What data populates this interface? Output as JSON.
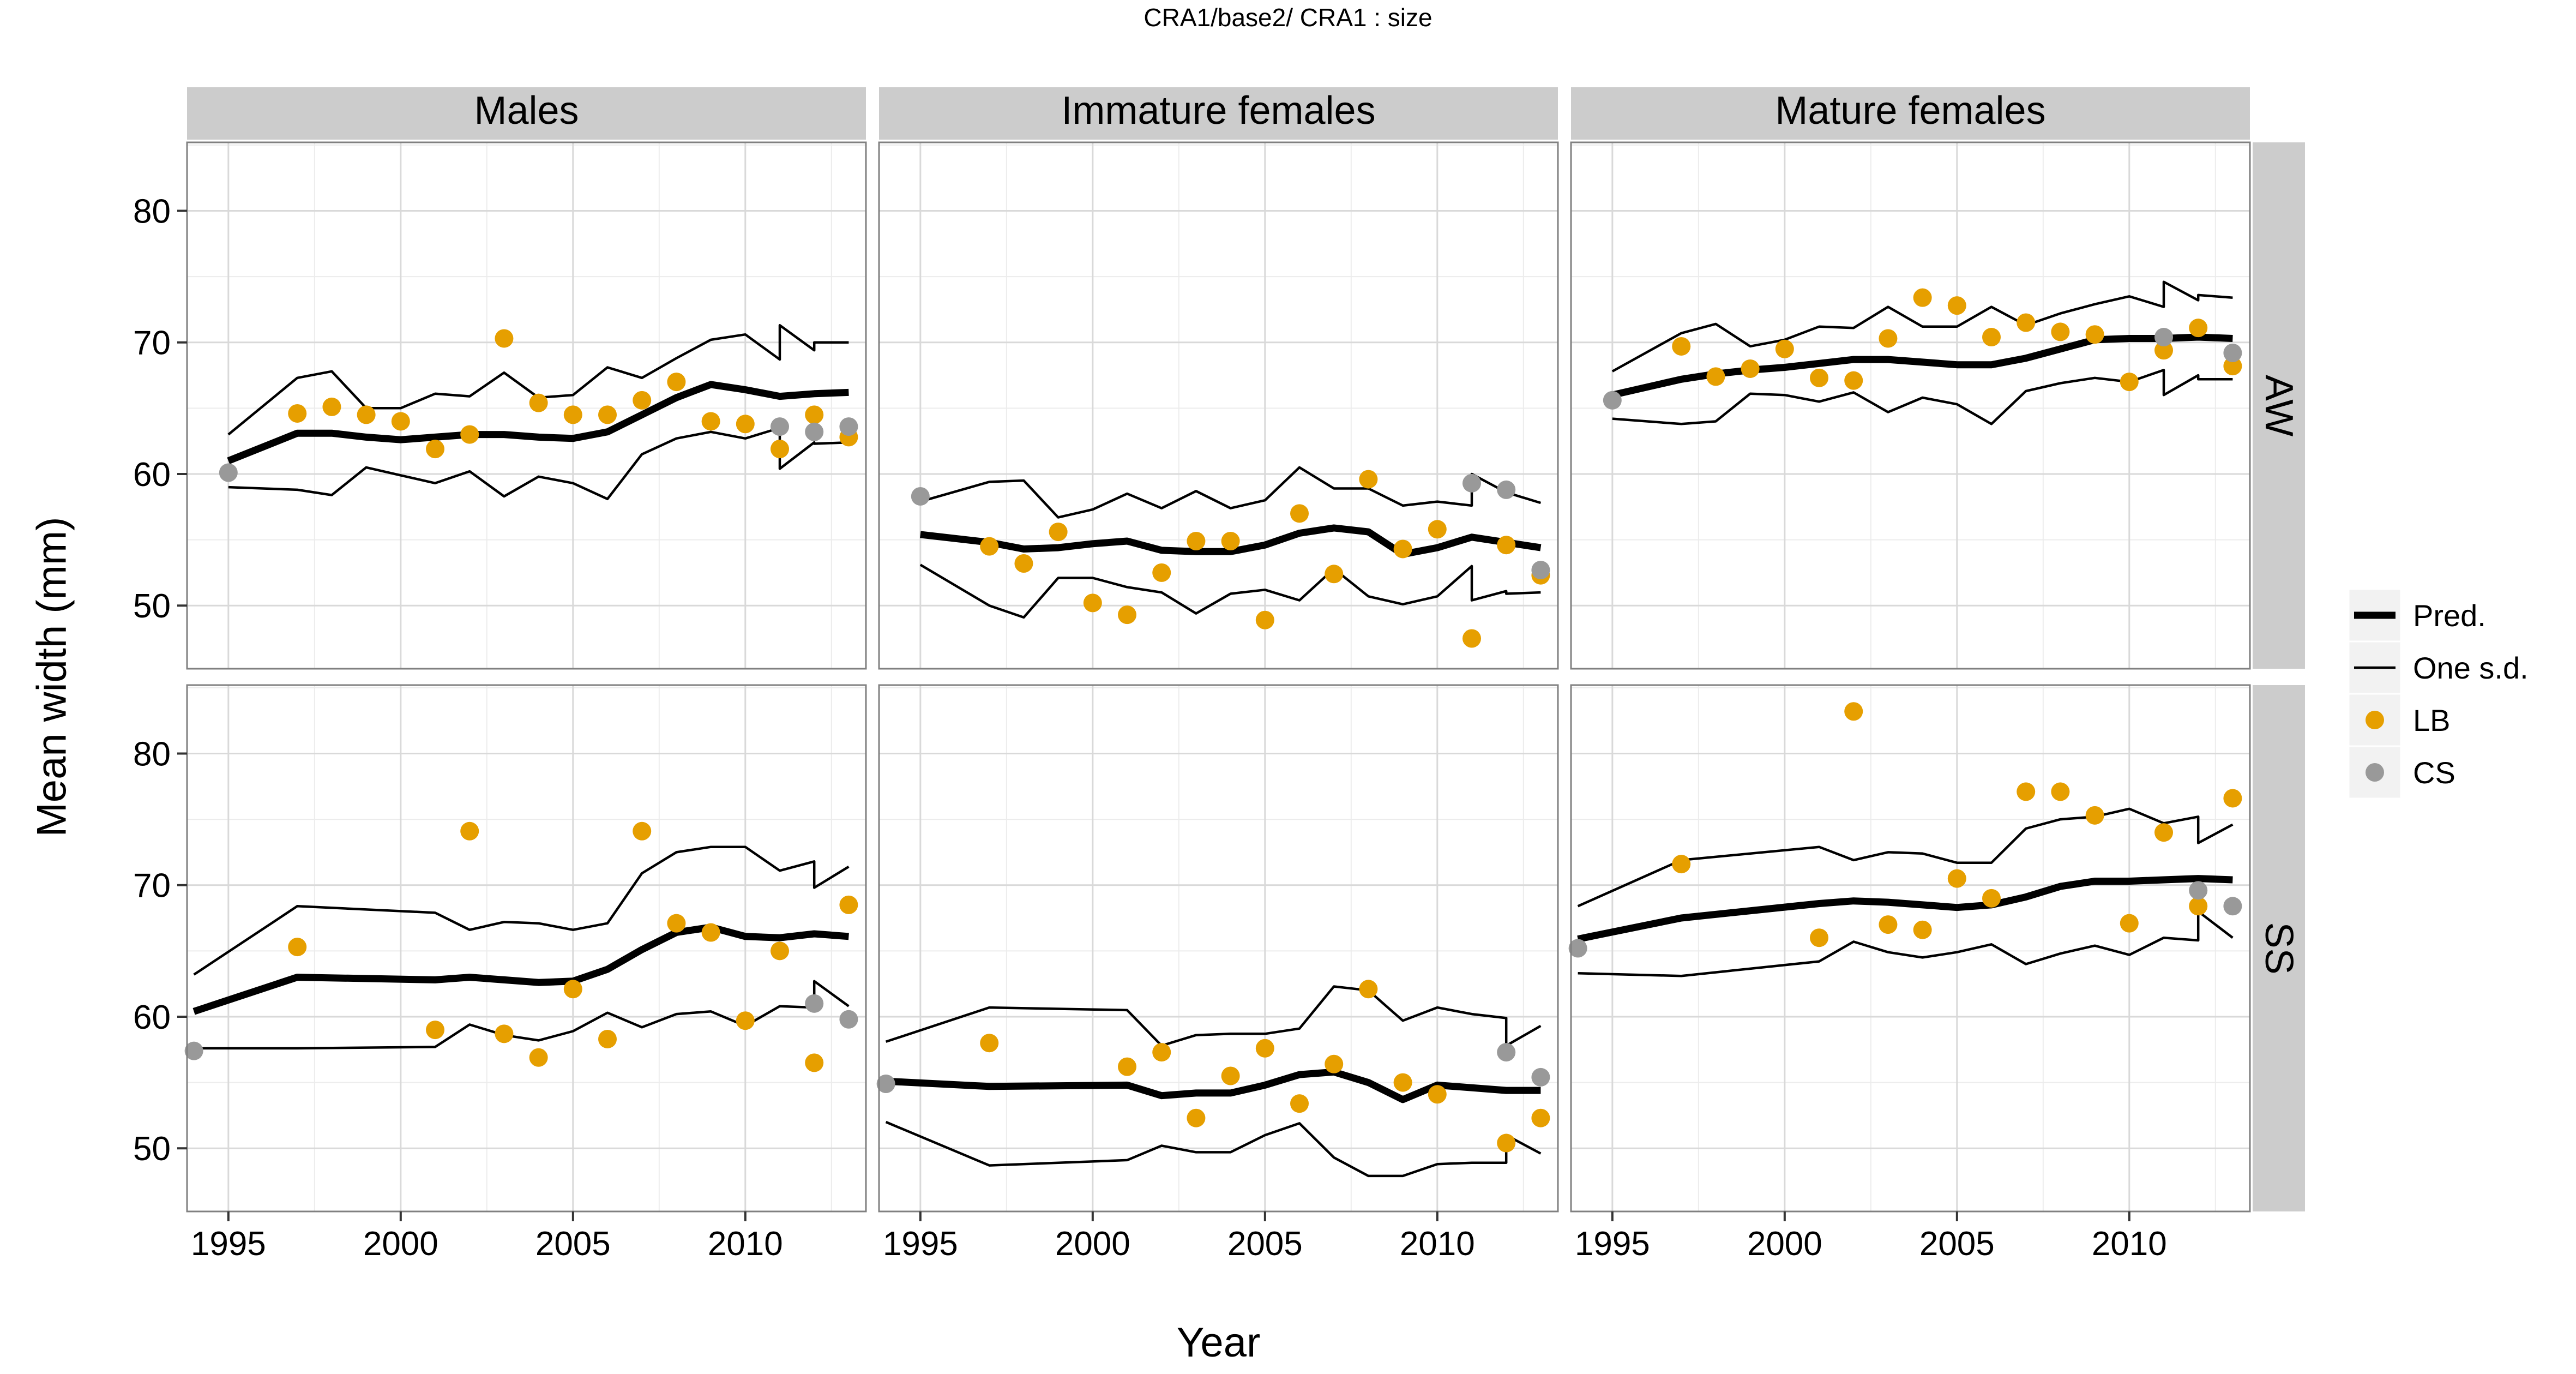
{
  "figure": {
    "title": "CRA1/base2/   CRA1 : size"
  },
  "chart_data": {
    "type": "scatter",
    "title": "CRA1/base2/   CRA1 : size",
    "xlabel": "Year",
    "ylabel": "Mean width (mm)",
    "xlim": [
      1993.8,
      2013.5
    ],
    "ylim": [
      45.2,
      85.2
    ],
    "x_ticks": [
      1995,
      2000,
      2005,
      2010
    ],
    "y_ticks": [
      50,
      60,
      70,
      80
    ],
    "x_tick_labels": [
      "1995",
      "2000",
      "2005",
      "2010"
    ],
    "y_tick_labels": [
      "50",
      "60",
      "70",
      "80"
    ],
    "grid": true,
    "legend_position": "right",
    "facet_columns": [
      "Males",
      "Immature females",
      "Mature females"
    ],
    "facet_rows": [
      "AW",
      "SS"
    ],
    "legend": [
      {
        "label": "Pred.",
        "kind": "thick-line",
        "color": "#000000"
      },
      {
        "label": "One s.d.",
        "kind": "thin-line",
        "color": "#000000"
      },
      {
        "label": "LB",
        "kind": "point",
        "color": "#E69F00"
      },
      {
        "label": "CS",
        "kind": "point",
        "color": "#999999"
      }
    ],
    "colors": {
      "LB": "#E69F00",
      "CS": "#999999",
      "lines": "#000000",
      "strip": "#cccccc",
      "grid": "#d9d9d9"
    },
    "panels": [
      {
        "row": "AW",
        "col": "Males",
        "pred": {
          "x": [
            1995,
            1997,
            1998,
            1999,
            2000,
            2001,
            2002,
            2003,
            2004,
            2005,
            2006,
            2007,
            2008,
            2009,
            2010,
            2011,
            2011,
            2012,
            2013
          ],
          "y": [
            61.0,
            63.1,
            63.1,
            62.8,
            62.6,
            62.8,
            63.0,
            63.0,
            62.8,
            62.7,
            63.2,
            64.5,
            65.8,
            66.8,
            66.4,
            65.9,
            65.9,
            66.1,
            66.2
          ]
        },
        "upper": {
          "x": [
            1995,
            1997,
            1998,
            1999,
            2000,
            2001,
            2002,
            2003,
            2004,
            2005,
            2006,
            2007,
            2008,
            2009,
            2010,
            2011,
            2011,
            2012,
            2012,
            2013
          ],
          "y": [
            63.0,
            67.3,
            67.8,
            65.0,
            65.0,
            66.1,
            65.9,
            67.7,
            65.8,
            66.0,
            68.1,
            67.3,
            68.8,
            70.2,
            70.6,
            68.7,
            71.3,
            69.4,
            70.0,
            70.0
          ]
        },
        "lower": {
          "x": [
            1995,
            1997,
            1998,
            1999,
            2000,
            2001,
            2002,
            2003,
            2004,
            2005,
            2006,
            2007,
            2008,
            2009,
            2010,
            2011,
            2011,
            2012,
            2012,
            2013
          ],
          "y": [
            59.0,
            58.8,
            58.4,
            60.5,
            59.9,
            59.3,
            60.2,
            58.3,
            59.8,
            59.3,
            58.1,
            61.5,
            62.7,
            63.2,
            62.7,
            63.5,
            60.4,
            62.4,
            62.3,
            62.4
          ]
        },
        "LB": {
          "x": [
            1997,
            1998,
            1999,
            2000,
            2001,
            2002,
            2003,
            2004,
            2005,
            2006,
            2007,
            2008,
            2009,
            2010,
            2011,
            2012,
            2013
          ],
          "y": [
            64.6,
            65.1,
            64.5,
            64.0,
            61.9,
            63.0,
            70.3,
            65.4,
            64.5,
            64.5,
            65.6,
            67.0,
            64.0,
            63.8,
            61.9,
            64.5,
            62.8
          ]
        },
        "CS": {
          "x": [
            1995,
            2011,
            2012,
            2013
          ],
          "y": [
            60.1,
            63.6,
            63.2,
            63.6
          ]
        }
      },
      {
        "row": "AW",
        "col": "Immature females",
        "pred": {
          "x": [
            1995,
            1997,
            1998,
            1999,
            2000,
            2001,
            2002,
            2003,
            2004,
            2005,
            2006,
            2007,
            2008,
            2009,
            2010,
            2011,
            2012,
            2013
          ],
          "y": [
            55.4,
            54.8,
            54.3,
            54.4,
            54.7,
            54.9,
            54.2,
            54.1,
            54.1,
            54.6,
            55.5,
            55.9,
            55.6,
            53.9,
            54.4,
            55.2,
            54.8,
            54.4
          ]
        },
        "upper": {
          "x": [
            1995,
            1997,
            1998,
            1999,
            2000,
            2001,
            2002,
            2003,
            2004,
            2005,
            2006,
            2007,
            2008,
            2009,
            2010,
            2011,
            2011,
            2012,
            2013
          ],
          "y": [
            57.9,
            59.4,
            59.5,
            56.7,
            57.3,
            58.5,
            57.4,
            58.7,
            57.4,
            58.0,
            60.5,
            58.9,
            58.9,
            57.6,
            57.9,
            57.6,
            60.0,
            58.6,
            57.8
          ]
        },
        "lower": {
          "x": [
            1995,
            1997,
            1998,
            1999,
            2000,
            2001,
            2002,
            2003,
            2004,
            2005,
            2006,
            2007,
            2008,
            2009,
            2010,
            2011,
            2011,
            2012,
            2012,
            2013
          ],
          "y": [
            53.1,
            50.0,
            49.1,
            52.1,
            52.1,
            51.4,
            51.0,
            49.4,
            50.9,
            51.2,
            50.4,
            52.8,
            50.7,
            50.1,
            50.7,
            53.0,
            50.4,
            51.1,
            50.9,
            51.0
          ]
        },
        "LB": {
          "x": [
            1997,
            1998,
            1999,
            2000,
            2001,
            2002,
            2003,
            2004,
            2005,
            2006,
            2007,
            2008,
            2009,
            2010,
            2011,
            2012,
            2013
          ],
          "y": [
            54.5,
            53.2,
            55.6,
            50.2,
            49.3,
            52.5,
            54.9,
            54.9,
            48.9,
            57.0,
            52.4,
            59.6,
            54.3,
            55.8,
            47.5,
            54.6,
            52.3
          ]
        },
        "CS": {
          "x": [
            1995,
            2011,
            2012,
            2013
          ],
          "y": [
            58.3,
            59.3,
            58.8,
            52.7
          ]
        }
      },
      {
        "row": "AW",
        "col": "Mature females",
        "pred": {
          "x": [
            1995,
            1997,
            1998,
            1999,
            2000,
            2001,
            2002,
            2003,
            2004,
            2005,
            2006,
            2007,
            2008,
            2009,
            2010,
            2011,
            2012,
            2013
          ],
          "y": [
            66.0,
            67.2,
            67.6,
            67.9,
            68.1,
            68.4,
            68.7,
            68.7,
            68.5,
            68.3,
            68.3,
            68.8,
            69.5,
            70.2,
            70.3,
            70.3,
            70.4,
            70.3
          ]
        },
        "upper": {
          "x": [
            1995,
            1997,
            1998,
            1999,
            2000,
            2001,
            2002,
            2003,
            2004,
            2005,
            2006,
            2007,
            2008,
            2009,
            2010,
            2011,
            2011,
            2012,
            2012,
            2013
          ],
          "y": [
            67.8,
            70.7,
            71.4,
            69.7,
            70.2,
            71.2,
            71.1,
            72.7,
            71.2,
            71.2,
            72.7,
            71.3,
            72.2,
            72.9,
            73.5,
            72.7,
            74.6,
            73.2,
            73.6,
            73.4
          ]
        },
        "lower": {
          "x": [
            1995,
            1997,
            1998,
            1999,
            2000,
            2001,
            2002,
            2003,
            2004,
            2005,
            2006,
            2007,
            2008,
            2009,
            2010,
            2011,
            2011,
            2012,
            2012,
            2013
          ],
          "y": [
            64.2,
            63.8,
            64.0,
            66.1,
            66.0,
            65.5,
            66.2,
            64.7,
            65.8,
            65.3,
            63.8,
            66.3,
            66.9,
            67.3,
            67.0,
            67.9,
            66.0,
            67.5,
            67.2,
            67.2
          ]
        },
        "LB": {
          "x": [
            1997,
            1998,
            1999,
            2000,
            2001,
            2002,
            2003,
            2004,
            2005,
            2006,
            2007,
            2008,
            2009,
            2010,
            2011,
            2012,
            2013
          ],
          "y": [
            69.7,
            67.4,
            68.0,
            69.5,
            67.3,
            67.1,
            70.3,
            73.4,
            72.8,
            70.4,
            71.5,
            70.8,
            70.6,
            67.0,
            69.4,
            71.1,
            68.2
          ]
        },
        "CS": {
          "x": [
            1995,
            2011,
            2013
          ],
          "y": [
            65.6,
            70.4,
            69.2
          ]
        }
      },
      {
        "row": "SS",
        "col": "Males",
        "pred": {
          "x": [
            1994,
            1997,
            2001,
            2002,
            2003,
            2004,
            2005,
            2006,
            2007,
            2008,
            2009,
            2010,
            2011,
            2012,
            2013
          ],
          "y": [
            60.4,
            63.0,
            62.8,
            63.0,
            62.8,
            62.6,
            62.7,
            63.6,
            65.1,
            66.4,
            66.8,
            66.1,
            66.0,
            66.3,
            66.1
          ]
        },
        "upper": {
          "x": [
            1994,
            1997,
            2001,
            2002,
            2003,
            2004,
            2005,
            2006,
            2007,
            2008,
            2009,
            2010,
            2011,
            2012,
            2012,
            2013
          ],
          "y": [
            63.2,
            68.4,
            67.9,
            66.6,
            67.2,
            67.1,
            66.6,
            67.1,
            70.9,
            72.5,
            72.9,
            72.9,
            71.1,
            71.8,
            69.8,
            71.4
          ]
        },
        "lower": {
          "x": [
            1994,
            1997,
            2001,
            2002,
            2003,
            2004,
            2005,
            2006,
            2007,
            2008,
            2009,
            2010,
            2011,
            2012,
            2012,
            2013
          ],
          "y": [
            57.6,
            57.6,
            57.7,
            59.4,
            58.6,
            58.2,
            58.9,
            60.3,
            59.2,
            60.2,
            60.4,
            59.3,
            60.8,
            60.7,
            62.7,
            60.8
          ]
        },
        "LB": {
          "x": [
            1997,
            2001,
            2002,
            2003,
            2004,
            2005,
            2006,
            2007,
            2008,
            2009,
            2010,
            2011,
            2012,
            2013
          ],
          "y": [
            65.3,
            59.0,
            74.1,
            58.7,
            56.9,
            62.1,
            58.3,
            74.1,
            67.1,
            66.4,
            59.7,
            65.0,
            56.5,
            68.5
          ]
        },
        "CS": {
          "x": [
            1994,
            2012,
            2013
          ],
          "y": [
            57.4,
            61.0,
            59.8
          ]
        }
      },
      {
        "row": "SS",
        "col": "Immature females",
        "pred": {
          "x": [
            1994,
            1997,
            2001,
            2002,
            2003,
            2004,
            2005,
            2006,
            2007,
            2008,
            2009,
            2010,
            2011,
            2012,
            2013
          ],
          "y": [
            55.1,
            54.7,
            54.8,
            54.0,
            54.2,
            54.2,
            54.8,
            55.6,
            55.8,
            55.0,
            53.7,
            54.8,
            54.6,
            54.4,
            54.4
          ]
        },
        "upper": {
          "x": [
            1994,
            1997,
            2001,
            2002,
            2003,
            2004,
            2005,
            2006,
            2007,
            2008,
            2009,
            2010,
            2011,
            2012,
            2012,
            2013
          ],
          "y": [
            58.1,
            60.7,
            60.5,
            57.8,
            58.6,
            58.7,
            58.7,
            59.1,
            62.3,
            62.0,
            59.7,
            60.7,
            60.2,
            59.9,
            57.8,
            59.3
          ]
        },
        "lower": {
          "x": [
            1994,
            1997,
            2001,
            2002,
            2003,
            2004,
            2005,
            2006,
            2007,
            2008,
            2009,
            2010,
            2011,
            2012,
            2012,
            2013
          ],
          "y": [
            52.0,
            48.7,
            49.1,
            50.2,
            49.7,
            49.7,
            51.0,
            51.9,
            49.3,
            47.9,
            47.9,
            48.8,
            48.9,
            48.9,
            51.0,
            49.6
          ]
        },
        "LB": {
          "x": [
            1997,
            2001,
            2002,
            2003,
            2004,
            2005,
            2006,
            2007,
            2008,
            2009,
            2010,
            2012,
            2013
          ],
          "y": [
            58.0,
            56.2,
            57.3,
            52.3,
            55.5,
            57.6,
            53.4,
            56.4,
            62.1,
            55.0,
            54.1,
            50.4,
            52.3
          ]
        },
        "CS": {
          "x": [
            1994,
            2012,
            2013
          ],
          "y": [
            54.9,
            57.3,
            55.4
          ]
        }
      },
      {
        "row": "SS",
        "col": "Mature females",
        "pred": {
          "x": [
            1994,
            1997,
            2001,
            2002,
            2003,
            2004,
            2005,
            2006,
            2007,
            2008,
            2009,
            2010,
            2011,
            2012,
            2013
          ],
          "y": [
            65.9,
            67.5,
            68.6,
            68.8,
            68.7,
            68.5,
            68.3,
            68.5,
            69.1,
            69.9,
            70.3,
            70.3,
            70.4,
            70.5,
            70.4
          ]
        },
        "upper": {
          "x": [
            1994,
            1997,
            2001,
            2002,
            2003,
            2004,
            2005,
            2006,
            2007,
            2008,
            2009,
            2010,
            2011,
            2012,
            2012,
            2013
          ],
          "y": [
            68.4,
            71.9,
            72.9,
            71.9,
            72.5,
            72.4,
            71.7,
            71.7,
            74.3,
            75.0,
            75.2,
            75.8,
            74.7,
            75.2,
            73.2,
            74.6
          ]
        },
        "lower": {
          "x": [
            1994,
            1997,
            2001,
            2002,
            2003,
            2004,
            2005,
            2006,
            2007,
            2008,
            2009,
            2010,
            2011,
            2012,
            2012,
            2013
          ],
          "y": [
            63.3,
            63.1,
            64.2,
            65.7,
            64.9,
            64.5,
            64.9,
            65.5,
            64.0,
            64.8,
            65.4,
            64.7,
            66.0,
            65.8,
            68.0,
            66.0
          ]
        },
        "LB": {
          "x": [
            1997,
            2001,
            2002,
            2003,
            2004,
            2005,
            2006,
            2007,
            2008,
            2009,
            2010,
            2011,
            2012,
            2013
          ],
          "y": [
            71.6,
            66.0,
            83.2,
            67.0,
            66.6,
            70.5,
            69.0,
            77.1,
            77.1,
            75.3,
            67.1,
            74.0,
            68.4,
            76.6
          ]
        },
        "CS": {
          "x": [
            1994,
            2012,
            2013
          ],
          "y": [
            65.2,
            69.6,
            68.4
          ]
        }
      }
    ]
  }
}
